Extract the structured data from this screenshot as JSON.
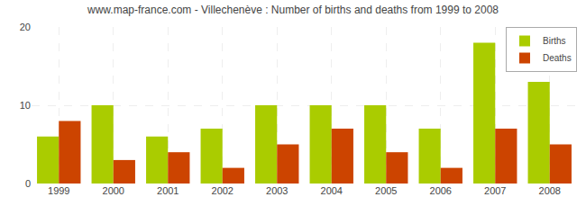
{
  "chart_data": {
    "type": "bar",
    "title": "www.map-france.com - Villechenève : Number of births and deaths from 1999 to 2008",
    "categories": [
      "1999",
      "2000",
      "2001",
      "2002",
      "2003",
      "2004",
      "2005",
      "2006",
      "2007",
      "2008"
    ],
    "series": [
      {
        "name": "Births",
        "color": "#aacc00",
        "values": [
          6,
          10,
          6,
          7,
          10,
          10,
          10,
          7,
          18,
          13
        ]
      },
      {
        "name": "Deaths",
        "color": "#cc4400",
        "values": [
          8,
          3,
          4,
          2,
          5,
          7,
          4,
          2,
          7,
          5
        ]
      }
    ],
    "ylim": [
      0,
      20
    ],
    "yticks": [
      0,
      10,
      20
    ],
    "grid": true,
    "legend": "upper right"
  }
}
